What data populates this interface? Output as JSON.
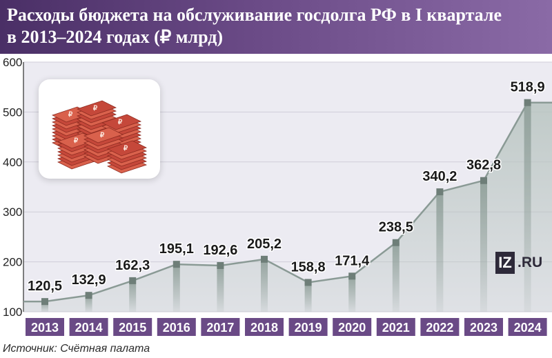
{
  "header": {
    "title_line1": "Расходы бюджета на обслуживание госдолга РФ в I квартале",
    "title_line2": "в 2013–2024 годах (₽ млрд)"
  },
  "source": "Источник: Счётная палата",
  "logo": {
    "icon": "iz-logo-icon",
    "box_text": "IZ",
    "suffix": ".RU"
  },
  "illustration": {
    "icon": "ruble-banknote-stacks-icon"
  },
  "colors": {
    "header_bg": "#5b3d78",
    "axis_label_bg": "#6a4a86",
    "line": "#8a9a95",
    "marker": "#6e7e78",
    "area_top": "#b8c4c0",
    "plot_bg": "#ecebf2"
  },
  "chart_data": {
    "type": "line",
    "categories": [
      "2013",
      "2014",
      "2015",
      "2016",
      "2017",
      "2018",
      "2019",
      "2020",
      "2021",
      "2022",
      "2023",
      "2024"
    ],
    "values": [
      120.5,
      132.9,
      162.3,
      195.1,
      192.6,
      205.2,
      158.8,
      171.4,
      238.5,
      340.2,
      362.8,
      518.9
    ],
    "value_labels": [
      "120,5",
      "132,9",
      "162,3",
      "195,1",
      "192,6",
      "205,2",
      "158,8",
      "171,4",
      "238,5",
      "340,2",
      "362,8",
      "518,9"
    ],
    "yticks": [
      100,
      200,
      300,
      400,
      500,
      600
    ],
    "ylim": [
      100,
      600
    ],
    "grid": true,
    "title": "Расходы бюджета на обслуживание госдолга РФ в I квартале в 2013–2024 годах (₽ млрд)"
  }
}
